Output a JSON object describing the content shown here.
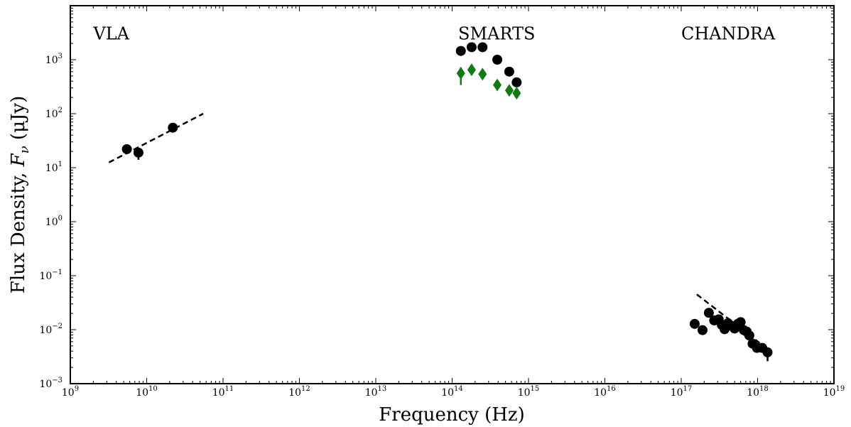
{
  "chart_data": {
    "type": "scatter",
    "x_scale": "log",
    "y_scale": "log",
    "xlim": [
      1000000000.0,
      1e+19
    ],
    "ylim": [
      0.001,
      10000
    ],
    "xlabel": "Frequency (Hz)",
    "ylabel_parts": {
      "text": "Flux Density, ",
      "var": "F",
      "sub": "ν",
      "unit": " (μJy)"
    },
    "x_ticks": [
      {
        "base": "10",
        "exp": "9",
        "value": 1000000000.0
      },
      {
        "base": "10",
        "exp": "10",
        "value": 10000000000.0
      },
      {
        "base": "10",
        "exp": "11",
        "value": 100000000000.0
      },
      {
        "base": "10",
        "exp": "12",
        "value": 1000000000000.0
      },
      {
        "base": "10",
        "exp": "13",
        "value": 10000000000000.0
      },
      {
        "base": "10",
        "exp": "14",
        "value": 100000000000000.0
      },
      {
        "base": "10",
        "exp": "15",
        "value": 1000000000000000.0
      },
      {
        "base": "10",
        "exp": "16",
        "value": 1e+16
      },
      {
        "base": "10",
        "exp": "17",
        "value": 1e+17
      },
      {
        "base": "10",
        "exp": "18",
        "value": 1e+18
      },
      {
        "base": "10",
        "exp": "19",
        "value": 1e+19
      }
    ],
    "y_ticks": [
      {
        "base": "10",
        "exp": "−3",
        "value": 0.001
      },
      {
        "base": "10",
        "exp": "−2",
        "value": 0.01
      },
      {
        "base": "10",
        "exp": "−1",
        "value": 0.1
      },
      {
        "base": "10",
        "exp": "0",
        "value": 1
      },
      {
        "base": "10",
        "exp": "1",
        "value": 10
      },
      {
        "base": "10",
        "exp": "2",
        "value": 100
      },
      {
        "base": "10",
        "exp": "3",
        "value": 1000
      }
    ],
    "annotations": [
      {
        "text": "VLA",
        "x": 2000000000.0,
        "y": 3000
      },
      {
        "text": "SMARTS",
        "x": 120000000000000.0,
        "y": 3000
      },
      {
        "text": "CHANDRA",
        "x": 1e+17,
        "y": 3000
      }
    ],
    "series": [
      {
        "marker": "circle",
        "color": "#000000",
        "points": [
          {
            "x": 5500000000.0,
            "y": 22,
            "ylo": 18,
            "yhi": 26
          },
          {
            "x": 7800000000.0,
            "y": 19,
            "ylo": 14,
            "yhi": 23
          },
          {
            "x": 22000000000.0,
            "y": 55,
            "ylo": 50,
            "yhi": 60
          },
          {
            "x": 130000000000000.0,
            "y": 1450
          },
          {
            "x": 180000000000000.0,
            "y": 1700
          },
          {
            "x": 250000000000000.0,
            "y": 1700
          },
          {
            "x": 390000000000000.0,
            "y": 1000
          },
          {
            "x": 560000000000000.0,
            "y": 600
          },
          {
            "x": 700000000000000.0,
            "y": 380
          },
          {
            "x": 1.5e+17,
            "y": 0.0128
          },
          {
            "x": 1.9e+17,
            "y": 0.0098
          },
          {
            "x": 2.3e+17,
            "y": 0.0205
          },
          {
            "x": 2.7e+17,
            "y": 0.0148
          },
          {
            "x": 3.1e+17,
            "y": 0.0155
          },
          {
            "x": 3.4e+17,
            "y": 0.0122
          },
          {
            "x": 3.7e+17,
            "y": 0.0102
          },
          {
            "x": 4.1e+17,
            "y": 0.0132
          },
          {
            "x": 4.5e+17,
            "y": 0.0118
          },
          {
            "x": 5e+17,
            "y": 0.0105,
            "ylo": 0.009,
            "yhi": 0.012
          },
          {
            "x": 5.5e+17,
            "y": 0.0128
          },
          {
            "x": 6e+17,
            "y": 0.0138
          },
          {
            "x": 6.6e+17,
            "y": 0.0098
          },
          {
            "x": 7.2e+17,
            "y": 0.0092
          },
          {
            "x": 7.8e+17,
            "y": 0.0078
          },
          {
            "x": 8.6e+17,
            "y": 0.0055
          },
          {
            "x": 9.8e+17,
            "y": 0.0046,
            "ylo": 0.0039,
            "yhi": 0.0054
          },
          {
            "x": 1.15e+18,
            "y": 0.0046
          },
          {
            "x": 1.35e+18,
            "y": 0.0038,
            "ylo": 0.0026,
            "yhi": 0.0044
          }
        ]
      },
      {
        "marker": "diamond",
        "color": "#117a11",
        "points": [
          {
            "x": 130000000000000.0,
            "y": 560,
            "ylo": 340,
            "yhi": 720
          },
          {
            "x": 180000000000000.0,
            "y": 650
          },
          {
            "x": 250000000000000.0,
            "y": 540
          },
          {
            "x": 390000000000000.0,
            "y": 340
          },
          {
            "x": 560000000000000.0,
            "y": 270
          },
          {
            "x": 700000000000000.0,
            "y": 240
          }
        ]
      }
    ],
    "fits": [
      {
        "style": "dashed",
        "x": [
          3200000000.0,
          55000000000.0
        ],
        "y": [
          12.5,
          100
        ]
      },
      {
        "style": "dashed",
        "x": [
          1.6e+17,
          1.4e+18
        ],
        "y": [
          0.045,
          0.0042
        ]
      }
    ]
  }
}
